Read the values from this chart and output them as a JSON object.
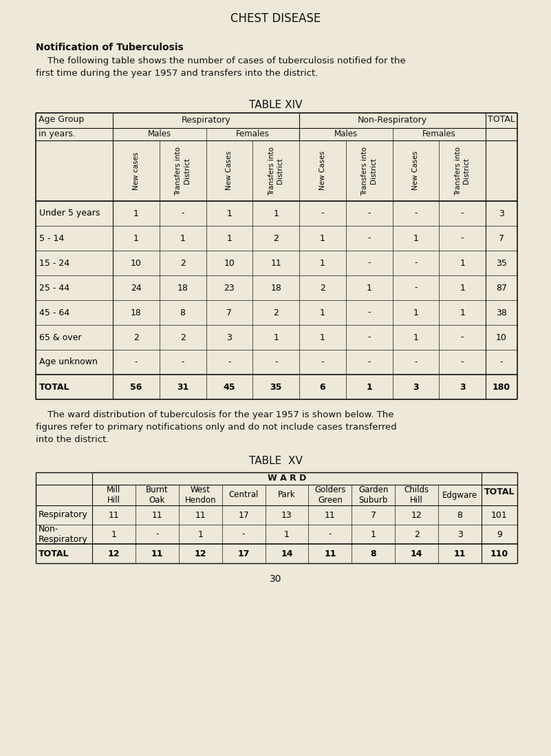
{
  "page_bg": "#ede8d8",
  "title": "CHEST DISEASE",
  "section_heading": "Notification of Tuberculosis",
  "intro_line1": "    The following table shows the number of cases of tuberculosis notified for the",
  "intro_line2": "first time during the year 1957 and transfers into the district.",
  "table14_title": "TABLE XIV",
  "table14_col_headers_bot": [
    "New cases",
    "Transfers into\nDistrict",
    "New Cases",
    "Transfers into\nDistrict",
    "New Cases",
    "Transfers into\nDistrict",
    "New Cases",
    "Transfers into\nDistrict"
  ],
  "table14_rows": [
    [
      "Under 5 years",
      "1",
      "-",
      "1",
      "1",
      "-",
      "-",
      "-",
      "-",
      "3"
    ],
    [
      "5 - 14",
      "1",
      "1",
      "1",
      "2",
      "1",
      "-",
      "1",
      "-",
      "7"
    ],
    [
      "15 - 24",
      "10",
      "2",
      "10",
      "11",
      "1",
      "-",
      "-",
      "1",
      "35"
    ],
    [
      "25 - 44",
      "24",
      "18",
      "23",
      "18",
      "2",
      "1",
      "-",
      "1",
      "87"
    ],
    [
      "45 - 64",
      "18",
      "8",
      "7",
      "2",
      "1",
      "-",
      "1",
      "1",
      "38"
    ],
    [
      "65 & over",
      "2",
      "2",
      "3",
      "1",
      "1",
      "-",
      "1",
      "-",
      "10"
    ],
    [
      "Age unknown",
      "-",
      "-",
      "-",
      "-",
      "-",
      "-",
      "-",
      "-",
      "-"
    ],
    [
      "TOTAL",
      "56",
      "31",
      "45",
      "35",
      "6",
      "1",
      "3",
      "3",
      "180"
    ]
  ],
  "between_line1": "    The ward distribution of tuberculosis for the year 1957 is shown below. The",
  "between_line2": "figures refer to primary notifications only and do not include cases transferred",
  "between_line3": "into the district.",
  "table15_title": "TABLE  XV",
  "table15_ward_header": "W A R D",
  "table15_col_headers": [
    "Mill\nHill",
    "Burnt\nOak",
    "West\nHendon",
    "Central",
    "Park",
    "Golders\nGreen",
    "Garden\nSuburb",
    "Childs\nHill",
    "Edgware"
  ],
  "table15_rows": [
    [
      "Respiratory",
      "11",
      "11",
      "11",
      "17",
      "13",
      "11",
      "7",
      "12",
      "8",
      "101"
    ],
    [
      "Non-\nRespiratory",
      "1",
      "-",
      "1",
      "-",
      "1",
      "-",
      "1",
      "2",
      "3",
      "9"
    ],
    [
      "TOTAL",
      "12",
      "11",
      "12",
      "17",
      "14",
      "11",
      "8",
      "14",
      "11",
      "110"
    ]
  ],
  "page_number": "30"
}
